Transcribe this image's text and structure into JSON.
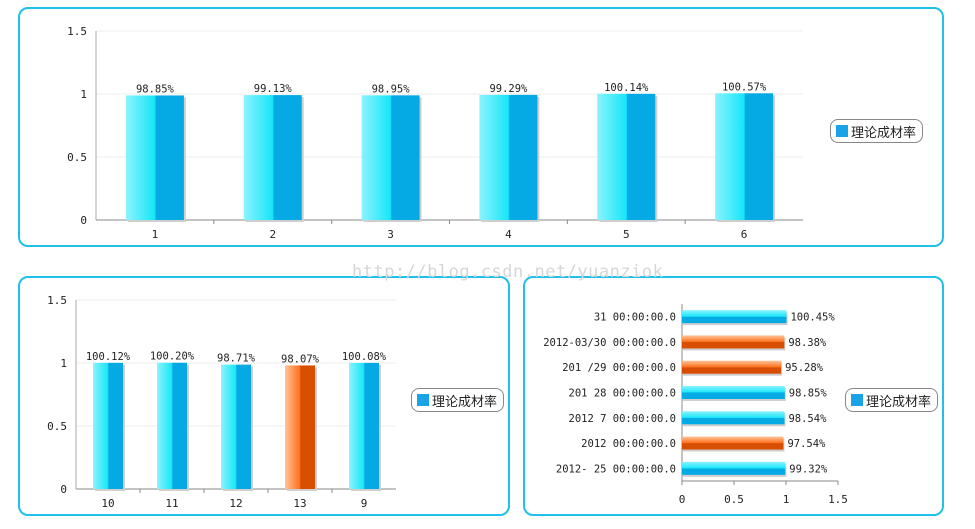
{
  "watermark": "http://blog.csdn.net/yuanziok",
  "colors": {
    "bar_cyan_light": "#8cf3ff",
    "bar_cyan": "#16e6f8",
    "bar_blue": "#05a9e4",
    "bar_orange_light": "#ffc49a",
    "bar_orange": "#ff6f1c",
    "bar_orange_dark": "#d84e00",
    "legend_swatch": "#1aa3e6",
    "panel_border": "#1fc0ea"
  },
  "chart_data": [
    {
      "type": "bar",
      "orientation": "vertical",
      "categories": [
        "1",
        "2",
        "3",
        "4",
        "5",
        "6"
      ],
      "series": [
        {
          "name": "理论成材率",
          "values": [
            0.9885,
            0.9913,
            0.9895,
            0.9929,
            1.0014,
            1.0057
          ],
          "labels": [
            "98.85%",
            "99.13%",
            "98.95%",
            "99.29%",
            "100.14%",
            "100.57%"
          ],
          "highlight": [
            false,
            false,
            false,
            false,
            false,
            false
          ]
        }
      ],
      "y_ticks": [
        "0",
        "0.5",
        "1",
        "1.5"
      ],
      "ylim": [
        0,
        1.5
      ],
      "legend": "right"
    },
    {
      "type": "bar",
      "orientation": "vertical",
      "categories": [
        "10",
        "11",
        "12",
        "13",
        "9"
      ],
      "series": [
        {
          "name": "理论成材率",
          "values": [
            1.0012,
            1.002,
            0.9871,
            0.9807,
            1.0008
          ],
          "labels": [
            "100.12%",
            "100.20%",
            "98.71%",
            "98.07%",
            "100.08%"
          ],
          "highlight": [
            false,
            false,
            false,
            true,
            false
          ]
        }
      ],
      "y_ticks": [
        "0",
        "0.5",
        "1",
        "1.5"
      ],
      "ylim": [
        0,
        1.5
      ],
      "legend": "right"
    },
    {
      "type": "bar",
      "orientation": "horizontal",
      "categories": [
        "2012-03-31 00:00:00.0",
        "2012-03/30 00:00:00.0",
        "2012-03/29 00:00:00.0",
        "2012-03-28 00:00:00.0",
        "2012-03-27 00:00:00.0",
        "2012-03-26 00:00:00.0",
        "2012-03-25 00:00:00.0"
      ],
      "category_labels": [
        "31  00:00:00.0",
        "2012-03/30  00:00:00.0",
        "201  /29  00:00:00.0",
        "201     28  00:00:00.0",
        "2012    7  00:00:00.0",
        "2012          00:00:00.0",
        "2012-   25  00:00:00.0"
      ],
      "series": [
        {
          "name": "理论成材率",
          "values": [
            1.0045,
            0.9838,
            0.9528,
            0.9885,
            0.9854,
            0.9754,
            0.9932
          ],
          "labels": [
            "100.45%",
            "98.38%",
            "95.28%",
            "98.85%",
            "98.54%",
            "97.54%",
            "99.32%"
          ],
          "highlight": [
            false,
            true,
            true,
            false,
            false,
            true,
            false
          ]
        }
      ],
      "x_ticks": [
        "0",
        "0.5",
        "1",
        "1.5"
      ],
      "xlim": [
        0,
        1.5
      ],
      "legend": "right"
    }
  ]
}
